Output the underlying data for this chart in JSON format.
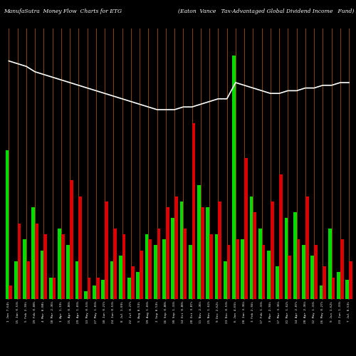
{
  "title_left": "ManufaSutra  Money Flow  Charts for ETG",
  "title_right": "(Eaton  Vance   Tax-Advantaged Global Dividend Income   Fund) Manu",
  "background_color": "#000000",
  "grid_color": "#8B4500",
  "line_color": "#ffffff",
  "bar_colors_green": "#00dd00",
  "bar_colors_red": "#dd0000",
  "bar_pairs": [
    {
      "g": 0.55,
      "r": 0.05
    },
    {
      "g": 0.14,
      "r": 0.28
    },
    {
      "g": 0.22,
      "r": 0.14
    },
    {
      "g": 0.34,
      "r": 0.28
    },
    {
      "g": 0.18,
      "r": 0.24
    },
    {
      "g": 0.08,
      "r": 0.08
    },
    {
      "g": 0.26,
      "r": 0.24
    },
    {
      "g": 0.2,
      "r": 0.44
    },
    {
      "g": 0.14,
      "r": 0.38
    },
    {
      "g": 0.03,
      "r": 0.08
    },
    {
      "g": 0.05,
      "r": 0.08
    },
    {
      "g": 0.07,
      "r": 0.36
    },
    {
      "g": 0.14,
      "r": 0.26
    },
    {
      "g": 0.16,
      "r": 0.24
    },
    {
      "g": 0.08,
      "r": 0.12
    },
    {
      "g": 0.1,
      "r": 0.18
    },
    {
      "g": 0.24,
      "r": 0.22
    },
    {
      "g": 0.2,
      "r": 0.26
    },
    {
      "g": 0.22,
      "r": 0.34
    },
    {
      "g": 0.3,
      "r": 0.38
    },
    {
      "g": 0.36,
      "r": 0.26
    },
    {
      "g": 0.2,
      "r": 0.65
    },
    {
      "g": 0.42,
      "r": 0.34
    },
    {
      "g": 0.34,
      "r": 0.24
    },
    {
      "g": 0.24,
      "r": 0.36
    },
    {
      "g": 0.14,
      "r": 0.2
    },
    {
      "g": 0.9,
      "r": 0.22
    },
    {
      "g": 0.22,
      "r": 0.52
    },
    {
      "g": 0.38,
      "r": 0.32
    },
    {
      "g": 0.26,
      "r": 0.2
    },
    {
      "g": 0.18,
      "r": 0.36
    },
    {
      "g": 0.12,
      "r": 0.46
    },
    {
      "g": 0.3,
      "r": 0.16
    },
    {
      "g": 0.32,
      "r": 0.22
    },
    {
      "g": 0.2,
      "r": 0.38
    },
    {
      "g": 0.16,
      "r": 0.2
    },
    {
      "g": 0.05,
      "r": 0.12
    },
    {
      "g": 0.26,
      "r": 0.08
    },
    {
      "g": 0.1,
      "r": 0.22
    },
    {
      "g": 0.07,
      "r": 0.14
    }
  ],
  "line_values": [
    0.88,
    0.87,
    0.86,
    0.84,
    0.83,
    0.82,
    0.81,
    0.8,
    0.79,
    0.78,
    0.77,
    0.76,
    0.75,
    0.74,
    0.73,
    0.72,
    0.71,
    0.7,
    0.7,
    0.7,
    0.71,
    0.71,
    0.72,
    0.73,
    0.74,
    0.74,
    0.8,
    0.79,
    0.78,
    0.77,
    0.76,
    0.76,
    0.77,
    0.77,
    0.78,
    0.78,
    0.79,
    0.79,
    0.8,
    0.8
  ],
  "x_labels": [
    "1 Jan 7.64%",
    "15 Jan 0.53%",
    "5 Feb 2.36%",
    "19 Feb 0.08%",
    "4 Mar 0.08%",
    "18 Mar 2.36%",
    "1 Apr 1.33%",
    "15 Apr 0.80%",
    "29 Apr 1.03%",
    "13 May 0.53%",
    "27 May 1.03%",
    "10 Jun 0.27%",
    "24 Jun 0.53%",
    "8 Jul 1.03%",
    "22 Jul 0.27%",
    "5 Aug 0.53%",
    "19 Aug 1.03%",
    "2 Sep 0.53%",
    "16 Sep 0.80%",
    "30 Sep 1.33%",
    "14 Oct 0.80%",
    "28 Oct 3.87%",
    "11 Nov 2.36%",
    "25 Nov 1.62%",
    "9 Dec 2.62%",
    "23 Dec 0.53%",
    "6 Jan 4.65%",
    "20 Jan 3.36%",
    "3 Feb 2.36%",
    "17 Feb 1.33%",
    "3 Mar 2.36%",
    "17 Mar 3.36%",
    "31 Mar 1.62%",
    "14 Apr 2.07%",
    "28 Apr 2.36%",
    "12 May 1.33%",
    "26 May 0.27%",
    "9 Jun 1.62%",
    "23 Jun 1.33%",
    "7 Jul 0.53%"
  ]
}
